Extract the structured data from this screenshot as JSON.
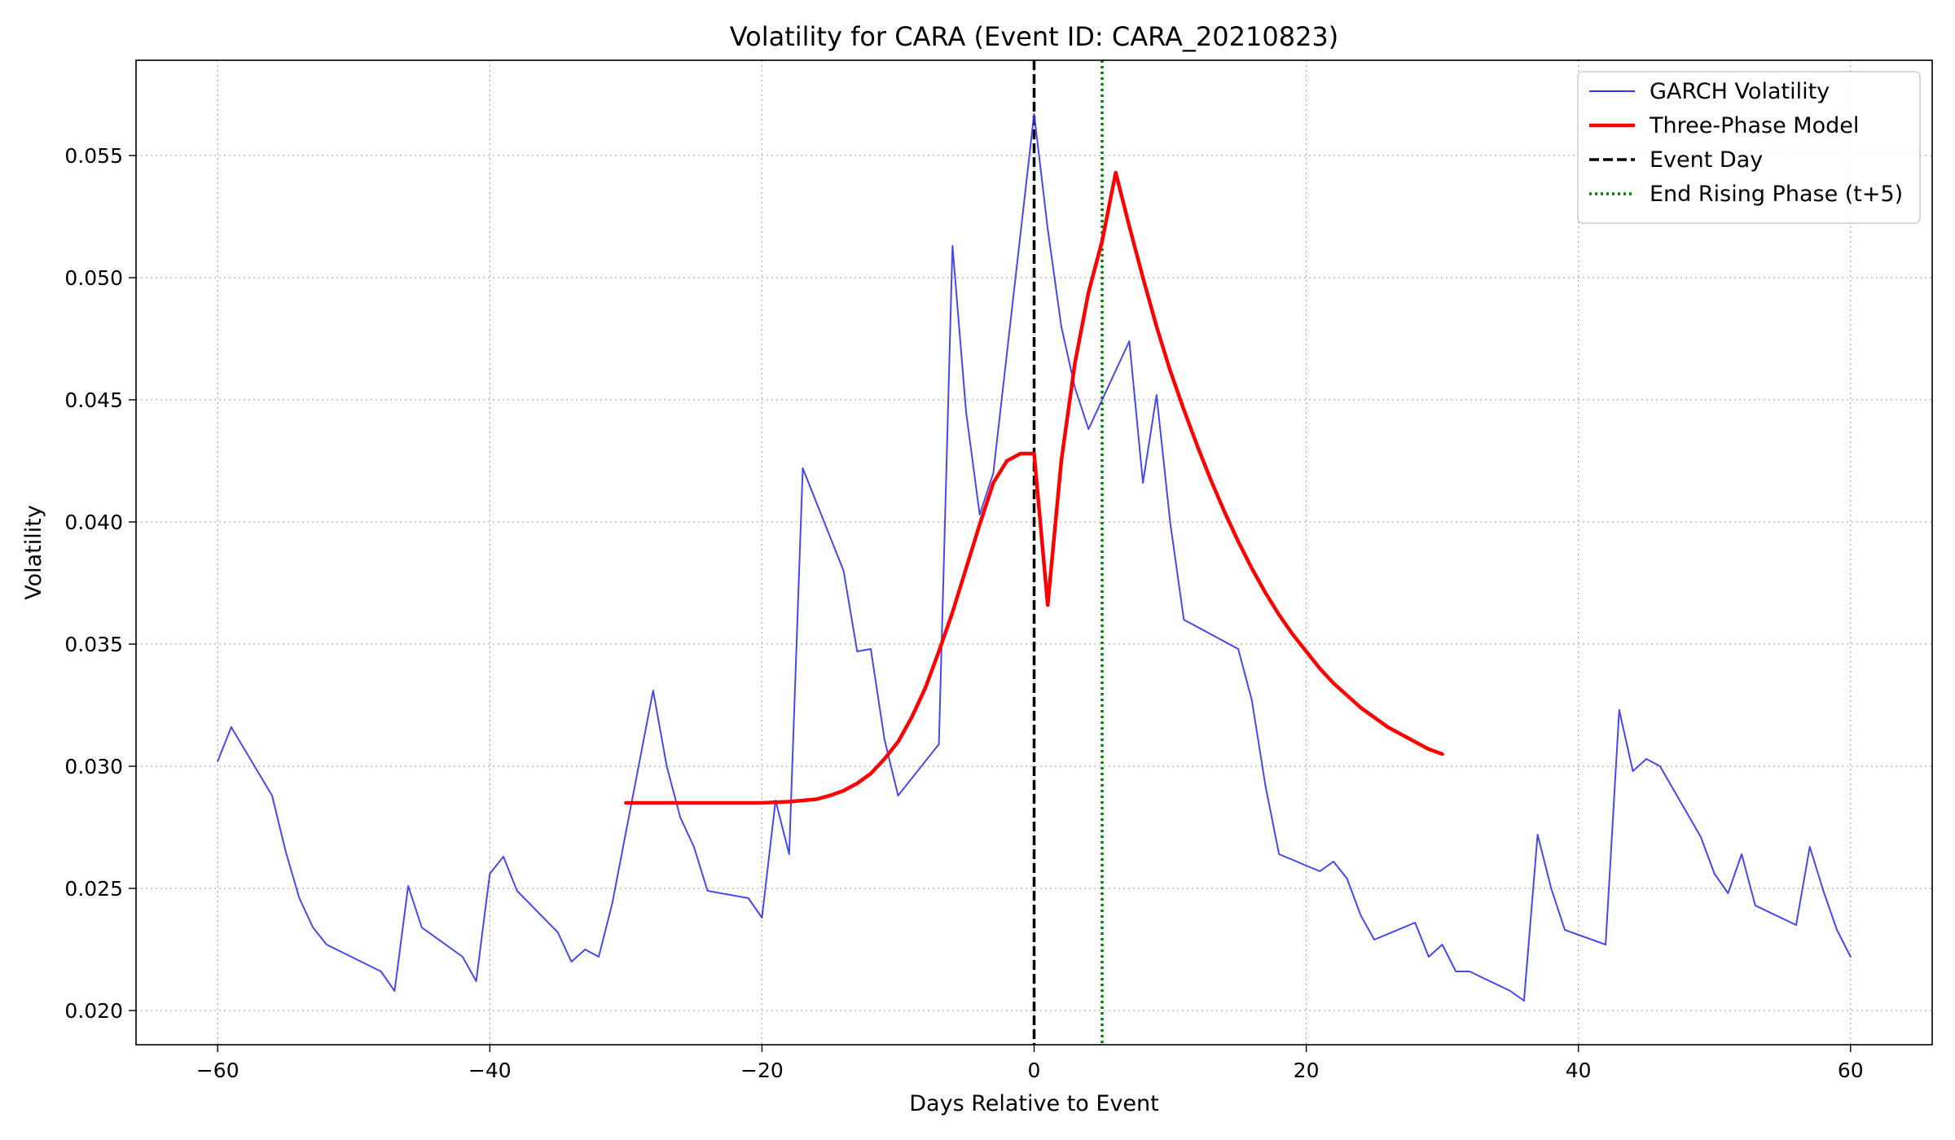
{
  "chart_data": {
    "type": "line",
    "title": "Volatility for CARA (Event ID: CARA_20210823)",
    "xlabel": "Days Relative to Event",
    "ylabel": "Volatility",
    "xlim": [
      -66,
      66
    ],
    "ylim": [
      0.0186,
      0.0589
    ],
    "x_ticks": [
      -60,
      -40,
      -20,
      0,
      20,
      40,
      60
    ],
    "x_tick_labels": [
      "−60",
      "−40",
      "−20",
      "0",
      "20",
      "40",
      "60"
    ],
    "y_ticks": [
      0.02,
      0.025,
      0.03,
      0.035,
      0.04,
      0.045,
      0.05,
      0.055
    ],
    "y_tick_labels": [
      "0.020",
      "0.025",
      "0.030",
      "0.035",
      "0.040",
      "0.045",
      "0.050",
      "0.055"
    ],
    "grid": true,
    "legend_position": "top-right",
    "series": [
      {
        "name": "GARCH Volatility",
        "color": "#3333ee",
        "style": "solid",
        "x": [
          -60,
          -59,
          -56,
          -55,
          -54,
          -53,
          -52,
          -48,
          -47,
          -46,
          -45,
          -42,
          -41,
          -40,
          -39,
          -38,
          -35,
          -34,
          -33,
          -32,
          -31,
          -28,
          -27,
          -26,
          -25,
          -24,
          -21,
          -20,
          -19,
          -18,
          -17,
          -14,
          -13,
          -12,
          -11,
          -10,
          -7,
          -6,
          -5,
          -4,
          -3,
          0,
          1,
          2,
          3,
          4,
          7,
          8,
          9,
          10,
          11,
          15,
          16,
          17,
          18,
          21,
          22,
          23,
          24,
          25,
          28,
          29,
          30,
          31,
          32,
          35,
          36,
          37,
          38,
          39,
          42,
          43,
          44,
          45,
          46,
          49,
          50,
          51,
          52,
          53,
          56,
          57,
          58,
          59,
          60
        ],
        "y": [
          0.0302,
          0.0316,
          0.0288,
          0.0265,
          0.0246,
          0.0234,
          0.0227,
          0.0216,
          0.0208,
          0.0251,
          0.0234,
          0.0222,
          0.0212,
          0.0256,
          0.0263,
          0.0249,
          0.0232,
          0.022,
          0.0225,
          0.0222,
          0.0244,
          0.0331,
          0.03,
          0.0279,
          0.0267,
          0.0249,
          0.0246,
          0.0238,
          0.0286,
          0.0264,
          0.0422,
          0.038,
          0.0347,
          0.0348,
          0.0311,
          0.0288,
          0.0309,
          0.0513,
          0.0445,
          0.0403,
          0.042,
          0.0567,
          0.052,
          0.048,
          0.0455,
          0.0438,
          0.0474,
          0.0416,
          0.0452,
          0.04,
          0.036,
          0.0348,
          0.0327,
          0.0292,
          0.0264,
          0.0257,
          0.0261,
          0.0254,
          0.0239,
          0.0229,
          0.0236,
          0.0222,
          0.0227,
          0.0216,
          0.0216,
          0.0208,
          0.0204,
          0.0272,
          0.025,
          0.0233,
          0.0227,
          0.0323,
          0.0298,
          0.0303,
          0.03,
          0.0271,
          0.0256,
          0.0248,
          0.0264,
          0.0243,
          0.0235,
          0.0267,
          0.0249,
          0.0233,
          0.0222
        ]
      },
      {
        "name": "Three-Phase Model",
        "color": "#ff0000",
        "style": "solid",
        "x": [
          -30,
          -25,
          -20,
          -18,
          -17,
          -16,
          -15,
          -14,
          -13,
          -12,
          -11,
          -10,
          -9,
          -8,
          -7,
          -6,
          -5,
          -4,
          -3,
          -2,
          -1,
          0,
          1,
          2,
          3,
          4,
          5,
          6,
          7,
          8,
          9,
          10,
          11,
          12,
          13,
          14,
          15,
          16,
          17,
          18,
          19,
          20,
          21,
          22,
          23,
          24,
          25,
          26,
          27,
          28,
          29,
          30
        ],
        "y": [
          0.0285,
          0.0285,
          0.0285,
          0.02855,
          0.0286,
          0.02865,
          0.0288,
          0.029,
          0.0293,
          0.0297,
          0.0303,
          0.031,
          0.032,
          0.0332,
          0.0347,
          0.0363,
          0.0381,
          0.0399,
          0.0416,
          0.0425,
          0.0428,
          0.0428,
          0.0366,
          0.0425,
          0.0465,
          0.0494,
          0.0515,
          0.0543,
          0.0521,
          0.05,
          0.048,
          0.0462,
          0.0446,
          0.0431,
          0.0417,
          0.0404,
          0.0392,
          0.0381,
          0.0371,
          0.0362,
          0.0354,
          0.0347,
          0.034,
          0.0334,
          0.0329,
          0.0324,
          0.032,
          0.0316,
          0.0313,
          0.031,
          0.0307,
          0.0305
        ]
      }
    ],
    "vertical_lines": [
      {
        "name": "Event Day",
        "x": 0,
        "color": "#000000",
        "style": "dashed"
      },
      {
        "name": "End Rising Phase (t+5)",
        "x": 5,
        "color": "#008000",
        "style": "dotted"
      }
    ]
  }
}
